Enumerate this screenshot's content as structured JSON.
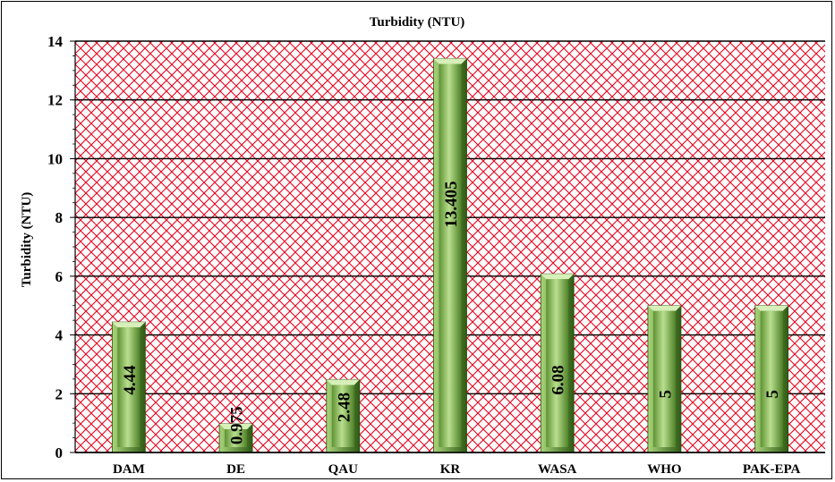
{
  "chart_data": {
    "type": "bar",
    "title": "Turbidity (NTU)",
    "xlabel": "",
    "ylabel": "Turbidity (NTU)",
    "categories": [
      "DAM",
      "DE",
      "QAU",
      "KR",
      "WASA",
      "WHO",
      "PAK-EPA"
    ],
    "values": [
      4.44,
      0.975,
      2.48,
      13.405,
      6.08,
      5,
      5
    ],
    "value_labels": [
      "4.44",
      "0.975",
      "2.48",
      "13.405",
      "6.08",
      "5",
      "5"
    ],
    "ylim": [
      0,
      14
    ],
    "yticks": [
      0,
      2,
      4,
      6,
      8,
      10,
      12,
      14
    ],
    "grid": true,
    "legend": "none",
    "colors": {
      "bar_light": "#c6e6a0",
      "bar_mid": "#7fb34d",
      "bar_dark": "#3d6e1c",
      "plot_pattern": "#e8001c",
      "gridline": "#000000"
    }
  }
}
